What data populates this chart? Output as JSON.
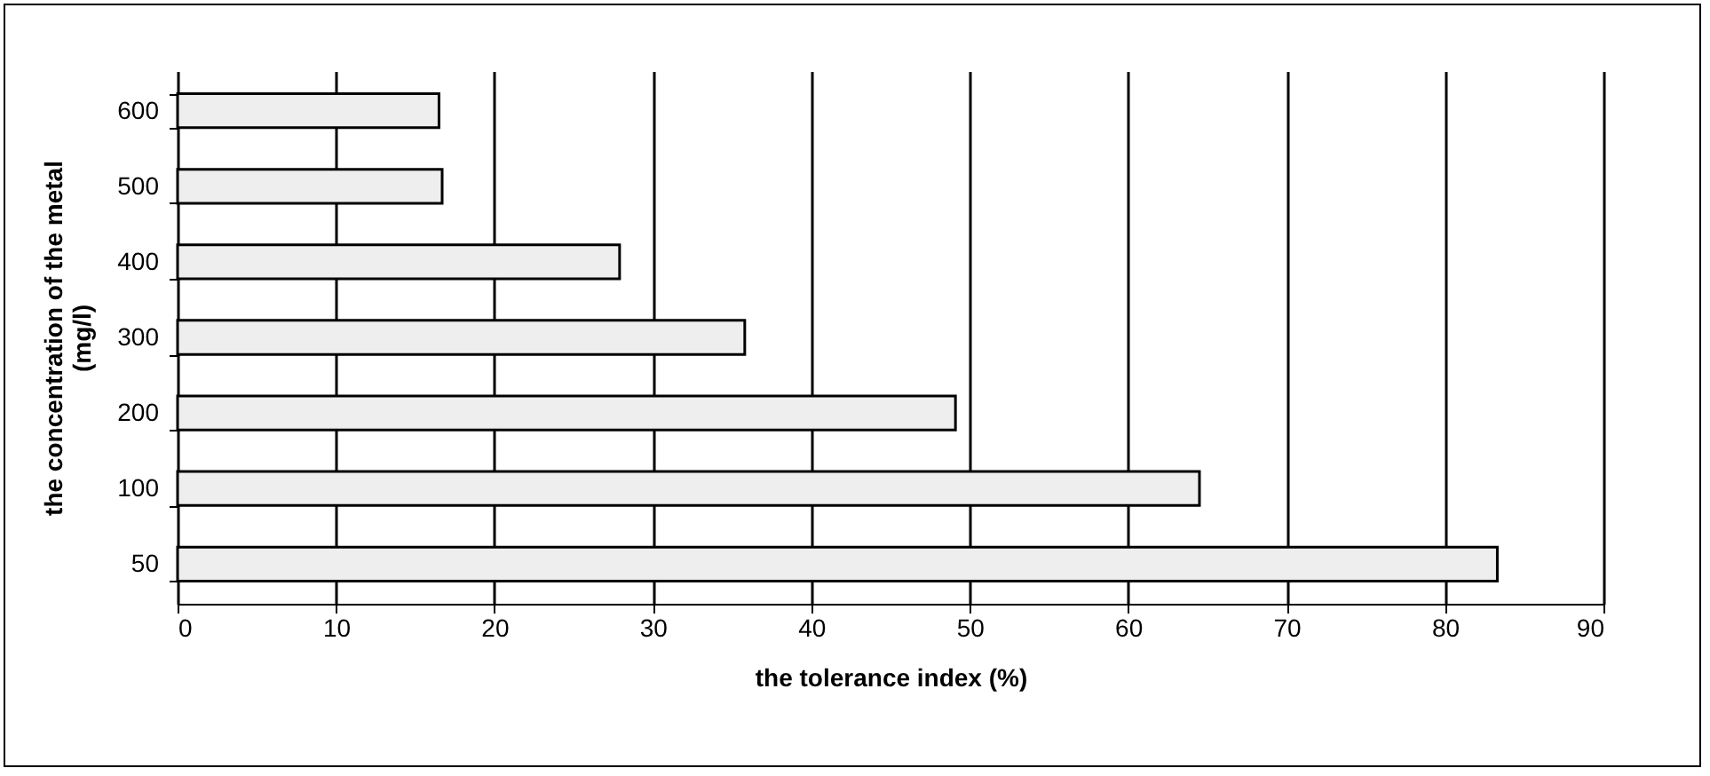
{
  "chart_data": {
    "type": "bar",
    "orientation": "horizontal",
    "xlabel": "the tolerance index (%)",
    "ylabel": "the concentration of the metal\n(mg/l)",
    "categories": [
      "600",
      "500",
      "400",
      "300",
      "200",
      "100",
      "50"
    ],
    "values": [
      16.5,
      16.7,
      27.9,
      35.8,
      49.1,
      64.5,
      83.3
    ],
    "color": "#eeeeee",
    "xlim": [
      0,
      90
    ],
    "xticks": [
      0,
      10,
      20,
      30,
      40,
      50,
      60,
      70,
      80,
      90
    ],
    "grid": "x"
  }
}
